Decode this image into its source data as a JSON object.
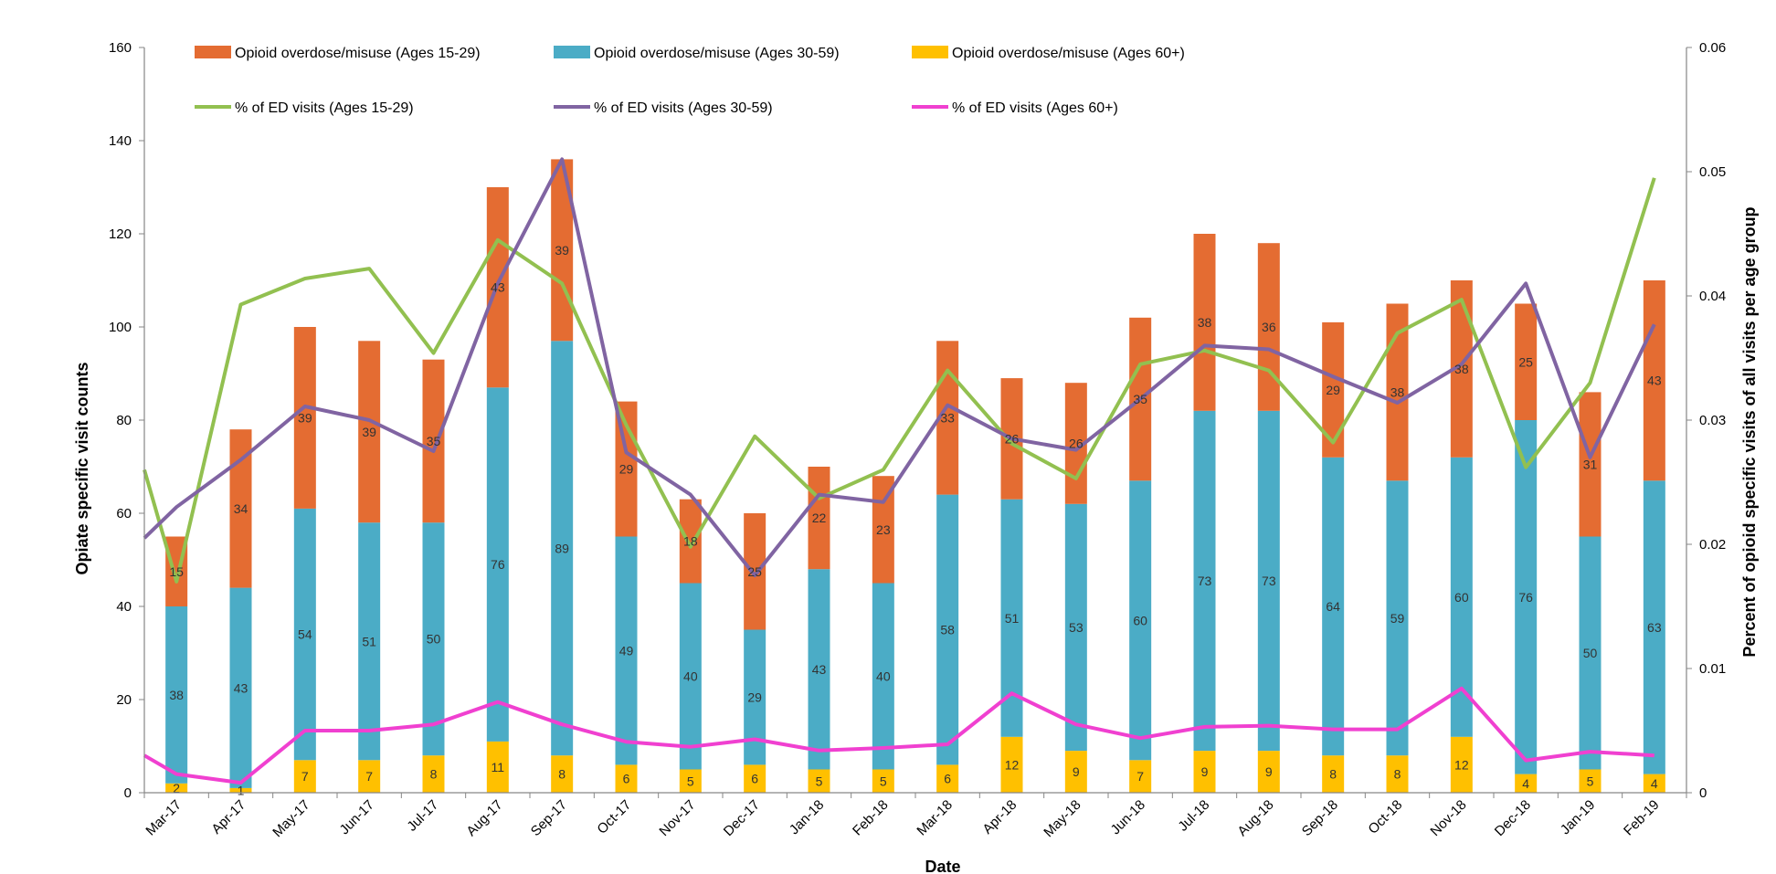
{
  "chart_data": {
    "type": "bar",
    "title": "",
    "xlabel": "Date",
    "ylabel": "Opiate specific visit counts",
    "y2label": "Percent of opioid specific visits of all visits per age group",
    "ylim": [
      0,
      160
    ],
    "y2lim": [
      0,
      0.06
    ],
    "yticks": [
      "0",
      "20",
      "40",
      "60",
      "80",
      "100",
      "120",
      "140",
      "160"
    ],
    "y2ticks": [
      "0",
      "0.01",
      "0.02",
      "0.03",
      "0.04",
      "0.05",
      "0.06"
    ],
    "legend_position": "top",
    "categories": [
      "Mar-17",
      "Apr-17",
      "May-17",
      "Jun-17",
      "Jul-17",
      "Aug-17",
      "Sep-17",
      "Oct-17",
      "Nov-17",
      "Dec-17",
      "Jan-18",
      "Feb-18",
      "Mar-18",
      "Apr-18",
      "May-18",
      "Jun-18",
      "Jul-18",
      "Aug-18",
      "Sep-18",
      "Oct-18",
      "Nov-18",
      "Dec-18",
      "Jan-19",
      "Feb-19"
    ],
    "bar_series": [
      {
        "name": "Opioid overdose/misuse (Ages 60+)",
        "color": "#FFC000",
        "values": [
          2,
          1,
          7,
          7,
          8,
          11,
          8,
          6,
          5,
          6,
          5,
          5,
          6,
          12,
          9,
          7,
          9,
          9,
          8,
          8,
          12,
          4,
          5,
          4
        ]
      },
      {
        "name": "Opioid overdose/misuse (Ages 30-59)",
        "color": "#4BACC6",
        "values": [
          38,
          43,
          54,
          51,
          50,
          76,
          89,
          49,
          40,
          29,
          43,
          40,
          58,
          51,
          53,
          60,
          73,
          73,
          64,
          59,
          60,
          76,
          50,
          63
        ]
      },
      {
        "name": "Opioid overdose/misuse (Ages 15-29)",
        "color": "#E46C32",
        "values": [
          15,
          34,
          39,
          39,
          35,
          43,
          39,
          29,
          18,
          25,
          22,
          23,
          33,
          26,
          26,
          35,
          38,
          36,
          29,
          38,
          38,
          25,
          31,
          43
        ]
      }
    ],
    "line_series": [
      {
        "name": "% of ED visits (Ages 15-29)",
        "color": "#92C050",
        "values": [
          0.026,
          0.017,
          0.0393,
          0.0414,
          0.0422,
          0.0354,
          0.0445,
          0.041,
          0.0296,
          0.0198,
          0.0287,
          0.0237,
          0.026,
          0.034,
          0.0281,
          0.0253,
          0.0345,
          0.0356,
          0.034,
          0.0282,
          0.037,
          0.0397,
          0.0262,
          0.033,
          0.0495
        ]
      },
      {
        "name": "% of ED visits (Ages 30-59)",
        "color": "#8064A2",
        "values": [
          0.0205,
          0.023,
          0.0268,
          0.0311,
          0.03,
          0.0275,
          0.041,
          0.051,
          0.0274,
          0.024,
          0.0175,
          0.024,
          0.0234,
          0.0312,
          0.0285,
          0.0276,
          0.0317,
          0.036,
          0.0357,
          0.0335,
          0.0314,
          0.0345,
          0.041,
          0.027,
          0.0377
        ]
      },
      {
        "name": "% of ED visits (Ages 60+)",
        "color": "#F040D0",
        "values": [
          0.003,
          0.0015,
          0.0008,
          0.005,
          0.005,
          0.0055,
          0.0073,
          0.0055,
          0.0041,
          0.0037,
          0.0043,
          0.0034,
          0.0036,
          0.0039,
          0.008,
          0.0055,
          0.0044,
          0.0053,
          0.0054,
          0.0051,
          0.0051,
          0.0084,
          0.0026,
          0.0033,
          0.003
        ]
      }
    ],
    "line_x": [
      -0.5,
      0,
      1,
      2,
      3,
      4,
      5,
      6,
      7,
      8,
      9,
      10,
      11,
      12,
      13,
      14,
      15,
      16,
      17,
      18,
      19,
      20,
      21,
      22,
      23
    ]
  }
}
